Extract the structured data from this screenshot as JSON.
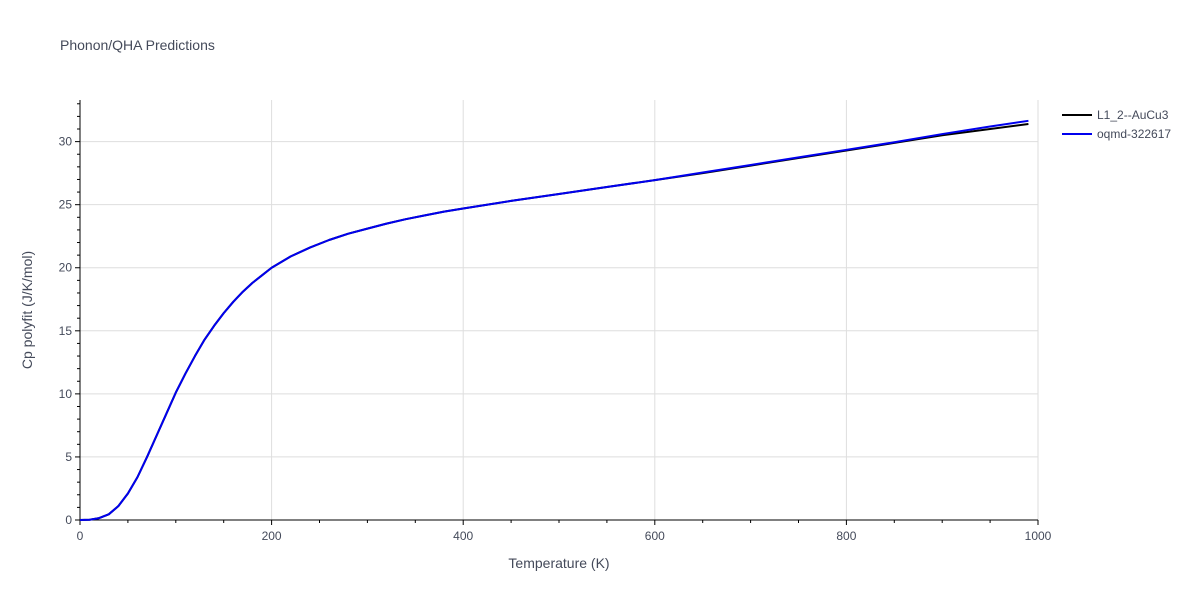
{
  "chart_data": {
    "type": "line",
    "title": "Phonon/QHA Predictions",
    "xlabel": "Temperature (K)",
    "ylabel": "Cp polyfit (J/K/mol)",
    "xlim": [
      0,
      1000
    ],
    "ylim": [
      0,
      33.3
    ],
    "xticks": [
      0,
      200,
      400,
      600,
      800,
      1000
    ],
    "yticks": [
      0,
      5,
      10,
      15,
      20,
      25,
      30
    ],
    "grid": true,
    "legend_position": "top-right",
    "x": [
      0,
      10,
      20,
      30,
      40,
      50,
      60,
      70,
      80,
      90,
      100,
      110,
      120,
      130,
      140,
      150,
      160,
      170,
      180,
      190,
      200,
      220,
      240,
      260,
      280,
      300,
      320,
      340,
      360,
      380,
      400,
      450,
      500,
      550,
      600,
      650,
      700,
      750,
      800,
      850,
      900,
      950,
      990
    ],
    "series": [
      {
        "name": "L1_2--AuCu3",
        "color": "#000000",
        "values": [
          0.0,
          0.02,
          0.15,
          0.45,
          1.1,
          2.1,
          3.4,
          5.0,
          6.7,
          8.4,
          10.1,
          11.6,
          13.0,
          14.3,
          15.4,
          16.4,
          17.3,
          18.1,
          18.8,
          19.4,
          20.0,
          20.9,
          21.6,
          22.2,
          22.7,
          23.1,
          23.5,
          23.85,
          24.15,
          24.45,
          24.7,
          25.3,
          25.85,
          26.4,
          26.95,
          27.5,
          28.1,
          28.7,
          29.3,
          29.9,
          30.5,
          31.0,
          31.4
        ]
      },
      {
        "name": "oqmd-322617",
        "color": "#0000ee",
        "values": [
          0.0,
          0.02,
          0.15,
          0.45,
          1.1,
          2.1,
          3.4,
          5.0,
          6.7,
          8.4,
          10.1,
          11.6,
          13.0,
          14.3,
          15.4,
          16.4,
          17.3,
          18.1,
          18.8,
          19.4,
          20.0,
          20.9,
          21.6,
          22.2,
          22.7,
          23.1,
          23.5,
          23.85,
          24.15,
          24.45,
          24.7,
          25.3,
          25.85,
          26.4,
          26.95,
          27.55,
          28.15,
          28.75,
          29.35,
          29.95,
          30.6,
          31.2,
          31.65
        ]
      }
    ]
  }
}
